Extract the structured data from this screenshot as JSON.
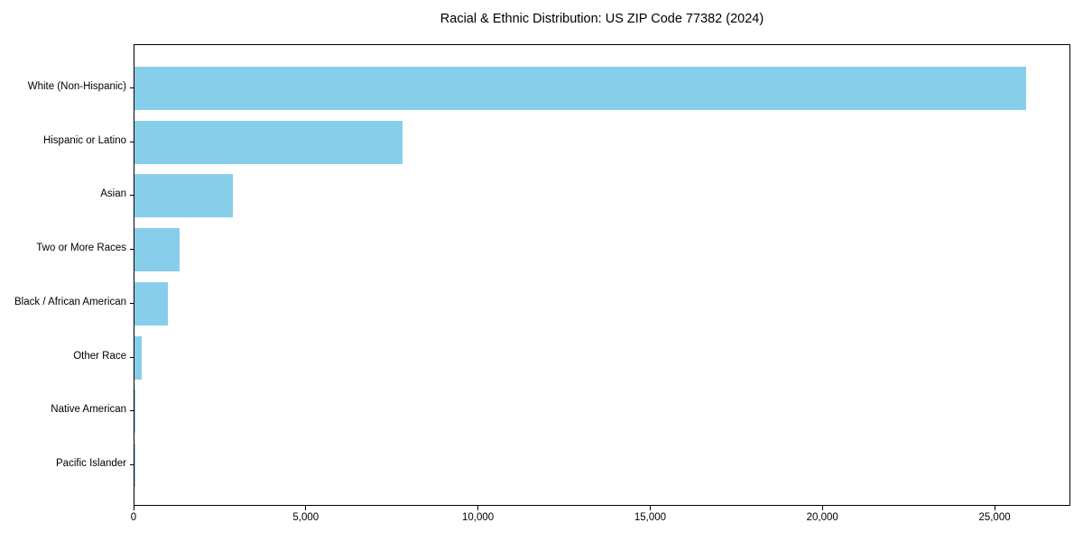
{
  "chart_data": {
    "type": "bar",
    "orientation": "horizontal",
    "title": "Racial & Ethnic Distribution: US ZIP Code 77382 (2024)",
    "categories": [
      "White (Non-Hispanic)",
      "Hispanic or Latino",
      "Asian",
      "Two or More Races",
      "Black / African American",
      "Other Race",
      "Native American",
      "Pacific Islander"
    ],
    "values": [
      25890,
      7790,
      2850,
      1305,
      975,
      210,
      30,
      10
    ],
    "xlabel": "",
    "ylabel": "",
    "xlim": [
      0,
      27200
    ],
    "xticks": [
      0,
      5000,
      10000,
      15000,
      20000,
      25000
    ],
    "xtick_labels": [
      "0",
      "5,000",
      "10,000",
      "15,000",
      "20,000",
      "25,000"
    ],
    "bar_color": "#87ceeb",
    "axis_color": "#000000",
    "background_color": "#ffffff",
    "grid": false,
    "legend": "none"
  }
}
